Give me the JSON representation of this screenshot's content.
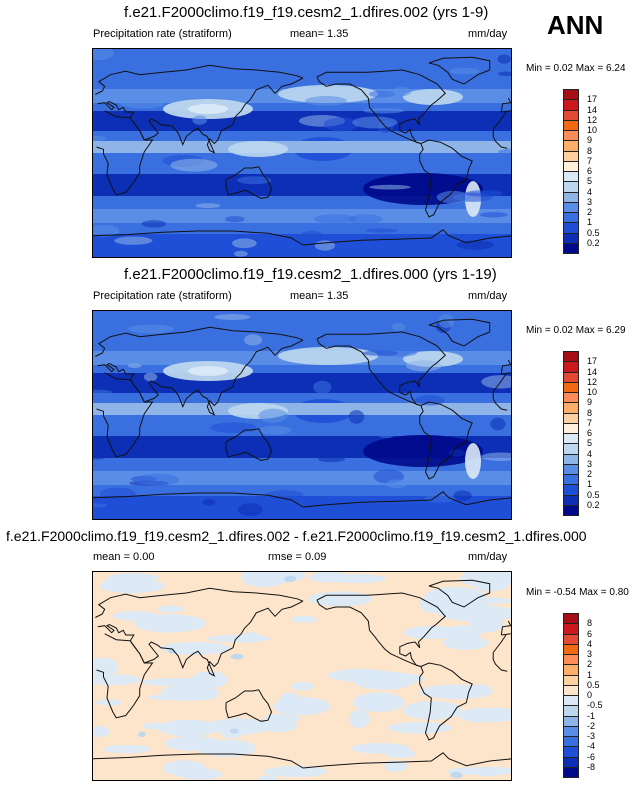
{
  "season": "ANN",
  "panels": [
    {
      "title": "f.e21.F2000climo.f19_f19.cesm2_1.dfires.002 (yrs 1-9)",
      "variable": "Precipitation rate (stratiform)",
      "stat": "mean=  1.35",
      "units": "mm/day",
      "minmax": "Min =  0.02 Max =  6.24"
    },
    {
      "title": "f.e21.F2000climo.f19_f19.cesm2_1.dfires.000 (yrs 1-19)",
      "variable": "Precipitation rate (stratiform)",
      "stat": "mean=  1.35",
      "units": "mm/day",
      "minmax": "Min =  0.02 Max =  6.29"
    },
    {
      "title": "f.e21.F2000climo.f19_f19.cesm2_1.dfires.002 - f.e21.F2000climo.f19_f19.cesm2_1.dfires.000",
      "stat": "mean =   0.00",
      "stat2": "rmse =   0.09",
      "units": "mm/day",
      "minmax": "Min =  -0.54 Max =  0.80"
    }
  ],
  "chart_data": [
    {
      "type": "heatmap",
      "title": "f.e21.F2000climo.f19_f19.cesm2_1.dfires.002 (yrs 1-9)",
      "variable": "Precipitation rate (stratiform)",
      "units": "mm/day",
      "mean": 1.35,
      "min": 0.02,
      "max": 6.24,
      "colorbar_levels": [
        "17",
        "14",
        "12",
        "10",
        "9",
        "8",
        "7",
        "6",
        "5",
        "4",
        "3",
        "2",
        "1",
        "0.5",
        "0.2"
      ],
      "colorbar_colors": [
        "#a50f15",
        "#cb181d",
        "#e34a33",
        "#f16913",
        "#fc8d59",
        "#fdae6b",
        "#fdd0a2",
        "#fff0dc",
        "#dbe9f6",
        "#bdd7ee",
        "#8fb5e8",
        "#5a8ee6",
        "#3a6fe0",
        "#1f4fd6",
        "#0d2fb5",
        "#000a8a"
      ]
    },
    {
      "type": "heatmap",
      "title": "f.e21.F2000climo.f19_f19.cesm2_1.dfires.000 (yrs 1-19)",
      "variable": "Precipitation rate (stratiform)",
      "units": "mm/day",
      "mean": 1.35,
      "min": 0.02,
      "max": 6.29,
      "colorbar_levels": [
        "17",
        "14",
        "12",
        "10",
        "9",
        "8",
        "7",
        "6",
        "5",
        "4",
        "3",
        "2",
        "1",
        "0.5",
        "0.2"
      ],
      "colorbar_colors": [
        "#a50f15",
        "#cb181d",
        "#e34a33",
        "#f16913",
        "#fc8d59",
        "#fdae6b",
        "#fdd0a2",
        "#fff0dc",
        "#dbe9f6",
        "#bdd7ee",
        "#8fb5e8",
        "#5a8ee6",
        "#3a6fe0",
        "#1f4fd6",
        "#0d2fb5",
        "#000a8a"
      ]
    },
    {
      "type": "heatmap",
      "title": "f.e21.F2000climo.f19_f19.cesm2_1.dfires.002 - f.e21.F2000climo.f19_f19.cesm2_1.dfires.000",
      "units": "mm/day",
      "mean": 0.0,
      "rmse": 0.09,
      "min": -0.54,
      "max": 0.8,
      "colorbar_levels": [
        "8",
        "6",
        "4",
        "3",
        "2",
        "1",
        "0.5",
        "0",
        "-0.5",
        "-1",
        "-2",
        "-3",
        "-4",
        "-6",
        "-8"
      ],
      "colorbar_colors": [
        "#a50f15",
        "#cb181d",
        "#e34a33",
        "#f16913",
        "#fc8d59",
        "#fdae6b",
        "#fdd0a2",
        "#fde5cc",
        "#dbe9f6",
        "#bdd7ee",
        "#8fb5e8",
        "#5a8ee6",
        "#3a6fe0",
        "#1f4fd6",
        "#0d2fb5",
        "#000a8a"
      ]
    }
  ]
}
